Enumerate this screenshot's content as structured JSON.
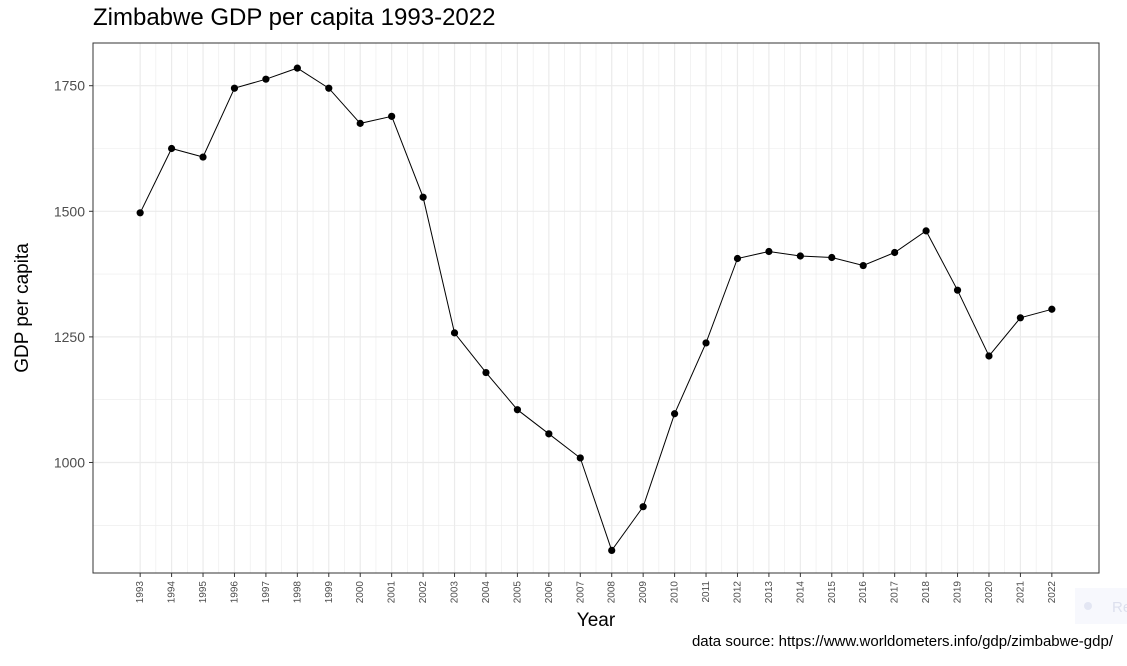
{
  "chart_data": {
    "type": "line",
    "title": "Zimbabwe GDP per capita 1993-2022",
    "xlabel": "Year",
    "ylabel": "GDP per capita",
    "caption": "data source: https://www.worldometers.info/gdp/zimbabwe-gdp/",
    "x": [
      1993,
      1994,
      1995,
      1996,
      1997,
      1998,
      1999,
      2000,
      2001,
      2002,
      2003,
      2004,
      2005,
      2006,
      2007,
      2008,
      2009,
      2010,
      2011,
      2012,
      2013,
      2014,
      2015,
      2016,
      2017,
      2018,
      2019,
      2020,
      2021,
      2022
    ],
    "series": [
      {
        "values": [
          1497,
          1625,
          1608,
          1745,
          1763,
          1785,
          1745,
          1675,
          1689,
          1528,
          1258,
          1179,
          1105,
          1057,
          1009,
          825,
          912,
          1097,
          1238,
          1406,
          1420,
          1411,
          1408,
          1392,
          1418,
          1461,
          1343,
          1212,
          1288,
          1305
        ]
      }
    ],
    "yticks": [
      1000,
      1250,
      1500,
      1750
    ],
    "ylim": [
      780,
      1835
    ],
    "xlim": [
      1991.5,
      2023.5
    ],
    "grid": true,
    "point_color": "#000000",
    "line_color": "#000000",
    "grid_color": "#ebebeb",
    "legend_fragment": "Re"
  }
}
